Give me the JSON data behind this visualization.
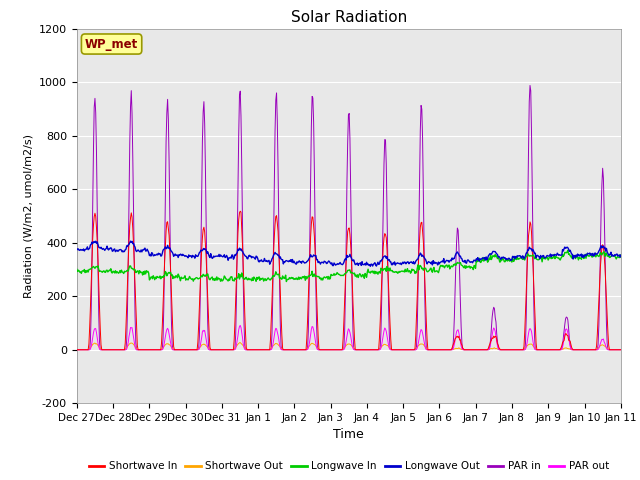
{
  "title": "Solar Radiation",
  "xlabel": "Time",
  "ylabel": "Radiation (W/m2, umol/m2/s)",
  "ylim": [
    -200,
    1200
  ],
  "yticks": [
    -200,
    0,
    200,
    400,
    600,
    800,
    1000,
    1200
  ],
  "x_labels": [
    "Dec 27",
    "Dec 28",
    "Dec 29",
    "Dec 30",
    "Dec 31",
    "Jan 1",
    "Jan 2",
    "Jan 3",
    "Jan 4",
    "Jan 5",
    "Jan 6",
    "Jan 7",
    "Jan 8",
    "Jan 9",
    "Jan 10",
    "Jan 11"
  ],
  "n_days": 15,
  "annotation_label": "WP_met",
  "annotation_color": "#8B0000",
  "annotation_bg": "#FFFF99",
  "bg_color": "#E8E8E8",
  "plot_bg": "#DCDCDC",
  "colors": {
    "shortwave_in": "#FF0000",
    "shortwave_out": "#FFA500",
    "longwave_in": "#00CC00",
    "longwave_out": "#0000CC",
    "par_in": "#9900BB",
    "par_out": "#FF00FF"
  },
  "legend_labels": [
    "Shortwave In",
    "Shortwave Out",
    "Longwave In",
    "Longwave Out",
    "PAR in",
    "PAR out"
  ],
  "par_in_peaks": [
    950,
    960,
    940,
    930,
    965,
    960,
    960,
    900,
    800,
    920,
    450,
    160,
    1000,
    130,
    670
  ],
  "par_out_peaks": [
    80,
    85,
    80,
    75,
    90,
    80,
    85,
    75,
    80,
    75,
    75,
    80,
    80,
    80,
    40
  ],
  "sw_in_peaks": [
    510,
    510,
    480,
    450,
    520,
    505,
    500,
    460,
    440,
    480,
    50,
    50,
    475,
    55,
    390
  ],
  "sw_out_peaks": [
    25,
    25,
    22,
    20,
    25,
    23,
    23,
    22,
    20,
    22,
    5,
    5,
    22,
    5,
    18
  ],
  "lw_in_base": [
    295,
    290,
    270,
    265,
    262,
    265,
    268,
    278,
    290,
    295,
    310,
    335,
    340,
    345,
    350
  ],
  "lw_out_base": [
    375,
    370,
    355,
    350,
    345,
    330,
    325,
    320,
    320,
    325,
    330,
    340,
    348,
    352,
    355
  ]
}
